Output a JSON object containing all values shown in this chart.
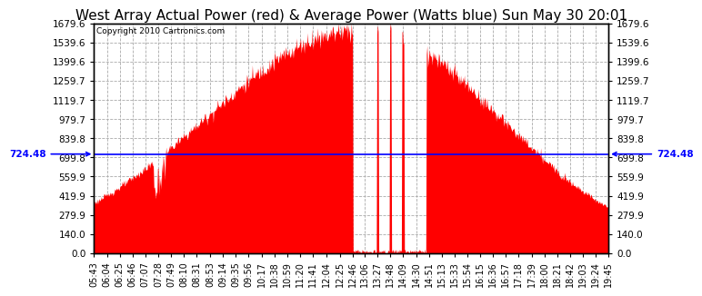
{
  "title": "West Array Actual Power (red) & Average Power (Watts blue) Sun May 30 20:01",
  "copyright": "Copyright 2010 Cartronics.com",
  "average_power": 724.48,
  "y_max": 1679.6,
  "y_ticks": [
    0.0,
    140.0,
    279.9,
    419.9,
    559.9,
    699.8,
    839.8,
    979.7,
    1119.7,
    1259.7,
    1399.6,
    1539.6,
    1679.6
  ],
  "background_color": "#ffffff",
  "fill_color": "#ff0000",
  "avg_line_color": "#0000ff",
  "grid_color": "#aaaaaa",
  "grid_style": "--",
  "x_labels": [
    "05:43",
    "06:04",
    "06:25",
    "06:46",
    "07:07",
    "07:28",
    "07:49",
    "08:10",
    "08:31",
    "08:53",
    "09:14",
    "09:35",
    "09:56",
    "10:17",
    "10:38",
    "10:59",
    "11:20",
    "11:41",
    "12:04",
    "12:25",
    "12:46",
    "13:06",
    "13:27",
    "13:48",
    "14:09",
    "14:30",
    "14:51",
    "15:13",
    "15:33",
    "15:54",
    "16:15",
    "16:36",
    "16:57",
    "17:18",
    "17:39",
    "18:00",
    "18:21",
    "18:42",
    "19:03",
    "19:24",
    "19:45"
  ],
  "title_fontsize": 11,
  "tick_fontsize": 7.5,
  "avg_label_fontsize": 7.5,
  "copyright_fontsize": 6.5
}
